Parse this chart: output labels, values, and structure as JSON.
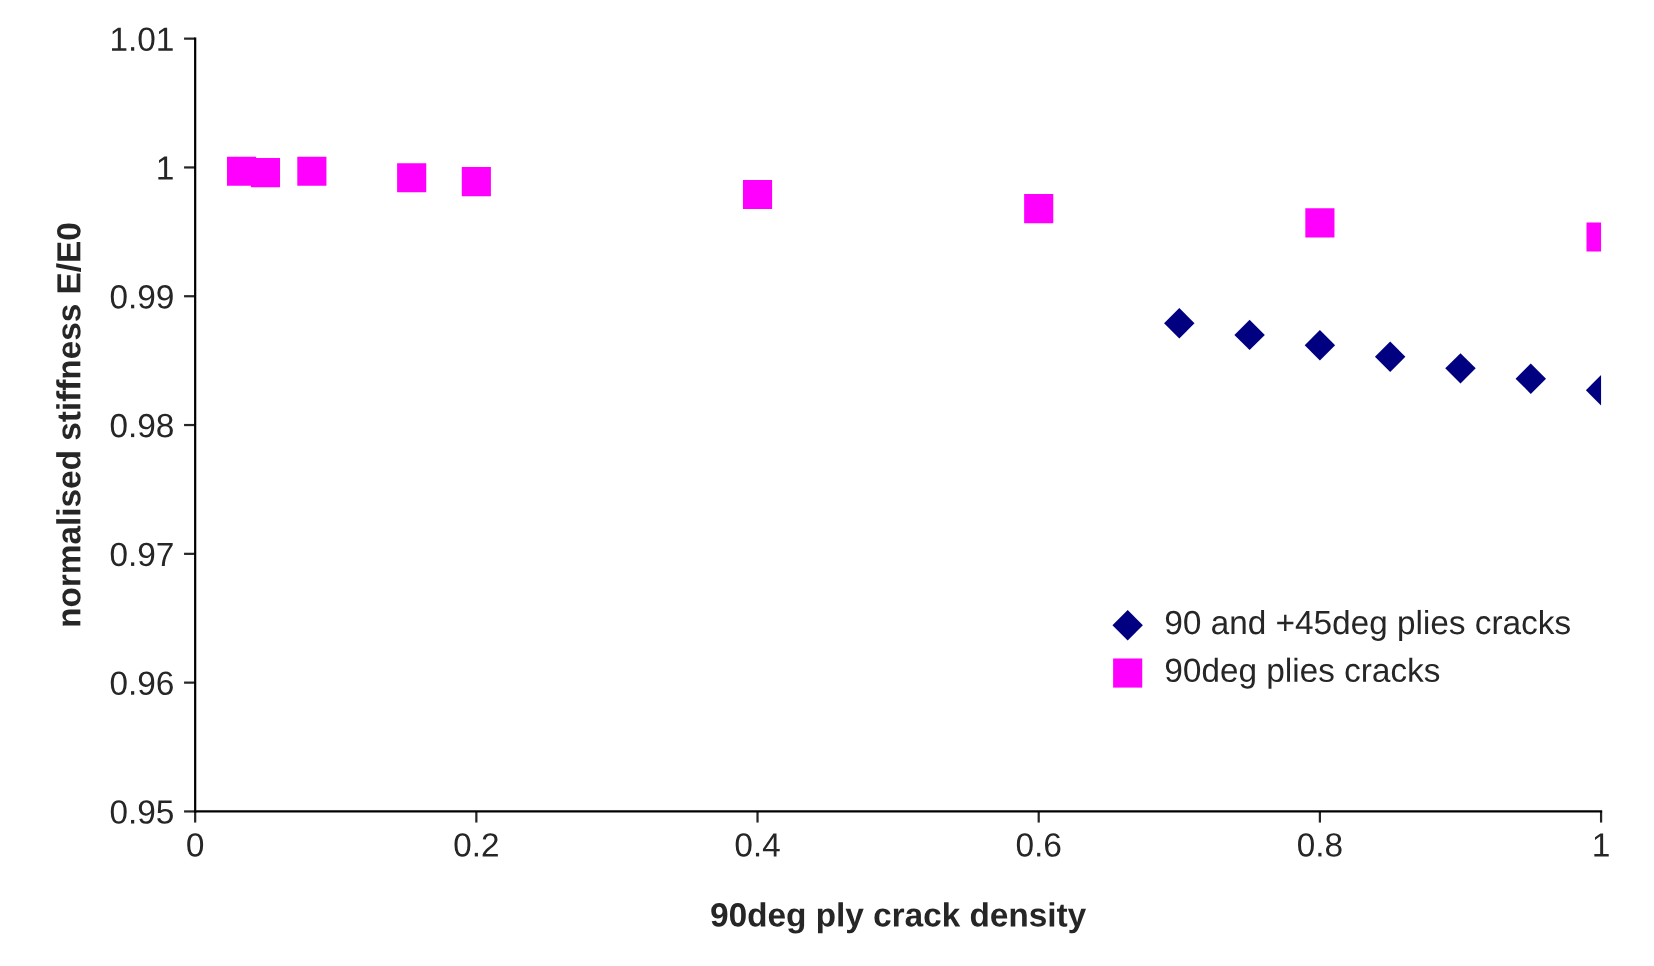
{
  "chart_data": {
    "type": "scatter",
    "xlabel": "90deg ply crack density",
    "ylabel": "normalised stiffness E/E0",
    "xlim": [
      0,
      1
    ],
    "xticks": [
      0,
      0.2,
      0.4,
      0.6,
      0.8,
      1
    ],
    "ylim": [
      0.95,
      1.01
    ],
    "yticks": [
      0.95,
      0.96,
      0.97,
      0.98,
      0.99,
      {
        "value": 1,
        "label": "1"
      },
      1.01
    ],
    "grid": false,
    "legend": "bottom right",
    "series": [
      {
        "name": "90 and +45deg plies cracks",
        "color": "#000080",
        "marker": "diamond",
        "x": [
          0.7,
          0.75,
          0.8,
          0.85,
          0.9,
          0.95,
          1.0
        ],
        "values": [
          0.9879,
          0.987,
          0.9862,
          0.9853,
          0.9844,
          0.9836,
          0.9827
        ]
      },
      {
        "name": "90deg plies cracks",
        "color": "#ff00ff",
        "marker": "square",
        "x": [
          0.033,
          0.05,
          0.083,
          0.154,
          0.2,
          0.4,
          0.6,
          0.8,
          1.0
        ],
        "values": [
          0.9997,
          0.9996,
          0.9997,
          0.9992,
          0.9989,
          0.9979,
          0.9968,
          0.9957,
          0.9946
        ]
      }
    ]
  }
}
